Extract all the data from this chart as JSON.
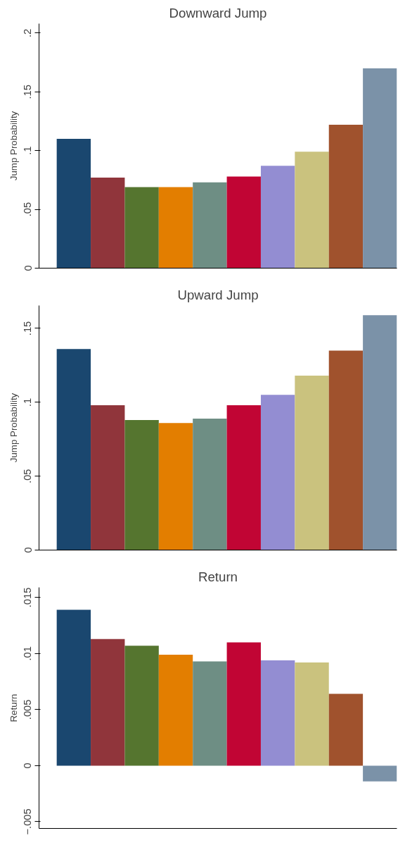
{
  "chart_data": [
    {
      "type": "bar",
      "title": "Downward Jump",
      "ylabel": "Jump Probability",
      "categories": [
        null,
        null,
        null,
        null,
        null,
        null,
        null,
        null,
        null,
        null
      ],
      "values": [
        0.11,
        0.077,
        0.069,
        0.069,
        0.073,
        0.078,
        0.087,
        0.099,
        0.122,
        0.17
      ],
      "colors": [
        "#1a476f",
        "#90353b",
        "#55752f",
        "#e37e00",
        "#6e8e84",
        "#c10534",
        "#938dd2",
        "#cac27e",
        "#a0522d",
        "#7b92a8"
      ],
      "ylim": [
        0,
        0.208
      ],
      "yticks": [
        0,
        {
          "value": 0.05,
          "label": ".05"
        },
        {
          "value": 0.1,
          "label": ".1"
        },
        {
          "value": 0.15,
          "label": ".15"
        },
        {
          "value": 0.2,
          "label": ".2"
        }
      ],
      "tick_labels": "y",
      "grid": false
    },
    {
      "type": "bar",
      "title": "Upward Jump",
      "ylabel": "Jump Probability",
      "categories": [
        null,
        null,
        null,
        null,
        null,
        null,
        null,
        null,
        null,
        null
      ],
      "values": [
        0.136,
        0.098,
        0.088,
        0.086,
        0.089,
        0.098,
        0.105,
        0.118,
        0.135,
        0.159
      ],
      "colors": [
        "#1a476f",
        "#90353b",
        "#55752f",
        "#e37e00",
        "#6e8e84",
        "#c10534",
        "#938dd2",
        "#cac27e",
        "#a0522d",
        "#7b92a8"
      ],
      "ylim": [
        0,
        0.1655
      ],
      "yticks": [
        0,
        {
          "value": 0.05,
          "label": ".05"
        },
        {
          "value": 0.1,
          "label": ".1"
        },
        {
          "value": 0.15,
          "label": ".15"
        }
      ],
      "tick_labels": "y",
      "grid": false
    },
    {
      "type": "bar",
      "title": "Return",
      "ylabel": "Return",
      "categories": [
        null,
        null,
        null,
        null,
        null,
        null,
        null,
        null,
        null,
        null
      ],
      "values": [
        0.0139,
        0.0113,
        0.0107,
        0.0099,
        0.0093,
        0.011,
        0.0094,
        0.0092,
        0.0064,
        -0.0014
      ],
      "colors": [
        "#1a476f",
        "#90353b",
        "#55752f",
        "#e37e00",
        "#6e8e84",
        "#c10534",
        "#938dd2",
        "#cac27e",
        "#a0522d",
        "#7b92a8"
      ],
      "ylim": [
        -0.0056,
        0.0159
      ],
      "yticks": [
        {
          "value": -0.005,
          "label": "−.005"
        },
        0,
        {
          "value": 0.005,
          "label": ".005"
        },
        {
          "value": 0.01,
          "label": ".01"
        },
        {
          "value": 0.015,
          "label": ".015"
        }
      ],
      "tick_labels": "y",
      "grid": false
    }
  ]
}
